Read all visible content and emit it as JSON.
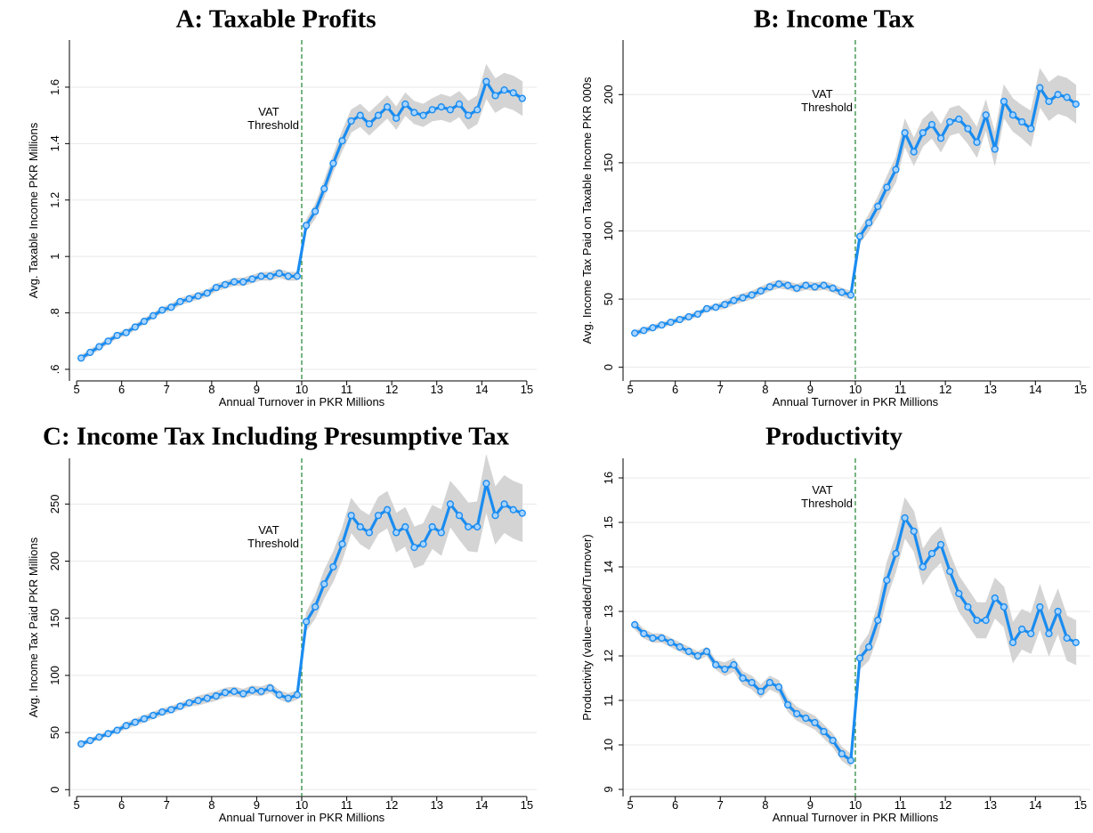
{
  "chart_data": [
    {
      "type": "line",
      "title": "A: Taxable Profits",
      "xlabel": "Annual Turnover in PKR Millions",
      "ylabel": "Avg. Taxable Income PKR Millions",
      "x": [
        5.1,
        5.3,
        5.5,
        5.7,
        5.9,
        6.1,
        6.3,
        6.5,
        6.7,
        6.9,
        7.1,
        7.3,
        7.5,
        7.7,
        7.9,
        8.1,
        8.3,
        8.5,
        8.7,
        8.9,
        9.1,
        9.3,
        9.5,
        9.7,
        9.9,
        10.1,
        10.3,
        10.5,
        10.7,
        10.9,
        11.1,
        11.3,
        11.5,
        11.7,
        11.9,
        12.1,
        12.3,
        12.5,
        12.7,
        12.9,
        13.1,
        13.3,
        13.5,
        13.7,
        13.9,
        14.1,
        14.3,
        14.5,
        14.7,
        14.9
      ],
      "values": [
        0.64,
        0.66,
        0.68,
        0.7,
        0.72,
        0.73,
        0.75,
        0.77,
        0.79,
        0.81,
        0.82,
        0.84,
        0.85,
        0.86,
        0.87,
        0.89,
        0.9,
        0.91,
        0.91,
        0.92,
        0.93,
        0.93,
        0.94,
        0.93,
        0.93,
        1.11,
        1.16,
        1.24,
        1.33,
        1.41,
        1.48,
        1.5,
        1.47,
        1.5,
        1.53,
        1.49,
        1.54,
        1.51,
        1.5,
        1.52,
        1.53,
        1.52,
        1.54,
        1.5,
        1.52,
        1.62,
        1.57,
        1.59,
        1.58,
        1.56
      ],
      "errors": [
        0.01,
        0.01,
        0.01,
        0.01,
        0.01,
        0.01,
        0.01,
        0.01,
        0.01,
        0.01,
        0.012,
        0.012,
        0.012,
        0.012,
        0.012,
        0.013,
        0.013,
        0.013,
        0.014,
        0.014,
        0.014,
        0.015,
        0.015,
        0.015,
        0.015,
        0.02,
        0.025,
        0.03,
        0.03,
        0.035,
        0.04,
        0.04,
        0.04,
        0.04,
        0.04,
        0.04,
        0.04,
        0.04,
        0.04,
        0.04,
        0.045,
        0.045,
        0.045,
        0.05,
        0.05,
        0.06,
        0.06,
        0.06,
        0.06,
        0.06
      ],
      "color": "#1a8cf0",
      "marker_fill": "#a8d4ff",
      "band_color": "#d4d4d4",
      "threshold": 10,
      "threshold_color": "#2e8b3e",
      "annotation_lines": [
        "VAT",
        "Threshold"
      ],
      "xlim": [
        4.84,
        15.22
      ],
      "xticks": [
        5,
        6,
        7,
        8,
        9,
        10,
        11,
        12,
        13,
        14,
        15
      ],
      "ylim": [
        0.559,
        1.767
      ],
      "yticks": [
        {
          "value": 0.6,
          "label": ".6"
        },
        {
          "value": 0.8,
          "label": ".8"
        },
        1,
        1.2,
        1.4,
        1.6
      ],
      "grid": true
    },
    {
      "type": "line",
      "title": "B: Income Tax",
      "xlabel": "Annual Turnover in PKR Millions",
      "ylabel": "Avg. Income Tax Paid on Taxable Income PKR 000s",
      "x": [
        5.1,
        5.3,
        5.5,
        5.7,
        5.9,
        6.1,
        6.3,
        6.5,
        6.7,
        6.9,
        7.1,
        7.3,
        7.5,
        7.7,
        7.9,
        8.1,
        8.3,
        8.5,
        8.7,
        8.9,
        9.1,
        9.3,
        9.5,
        9.7,
        9.9,
        10.1,
        10.3,
        10.5,
        10.7,
        10.9,
        11.1,
        11.3,
        11.5,
        11.7,
        11.9,
        12.1,
        12.3,
        12.5,
        12.7,
        12.9,
        13.1,
        13.3,
        13.5,
        13.7,
        13.9,
        14.1,
        14.3,
        14.5,
        14.7,
        14.9
      ],
      "values": [
        25,
        27,
        29,
        31,
        33,
        35,
        37,
        39,
        43,
        44,
        46,
        49,
        51,
        53,
        56,
        59,
        61,
        60,
        58,
        60,
        59,
        60,
        58,
        55,
        53,
        96,
        106,
        118,
        132,
        145,
        172,
        158,
        172,
        178,
        168,
        180,
        182,
        175,
        165,
        185,
        160,
        195,
        185,
        180,
        175,
        205,
        195,
        200,
        198,
        193
      ],
      "errors": [
        2,
        2,
        2,
        2,
        2,
        2,
        2,
        2,
        2,
        2,
        3,
        3,
        3,
        3,
        3,
        3,
        3,
        3,
        3,
        3,
        3,
        3,
        3,
        3,
        3,
        5,
        6,
        7,
        8,
        9,
        10,
        10,
        10,
        10,
        10,
        10,
        10,
        11,
        11,
        11,
        12,
        12,
        12,
        12,
        13,
        14,
        14,
        14,
        14,
        14
      ],
      "color": "#1a8cf0",
      "marker_fill": "#a8d4ff",
      "band_color": "#d4d4d4",
      "threshold": 10,
      "threshold_color": "#2e8b3e",
      "annotation_lines": [
        "VAT",
        "Threshold"
      ],
      "xlim": [
        4.84,
        15.22
      ],
      "xticks": [
        5,
        6,
        7,
        8,
        9,
        10,
        11,
        12,
        13,
        14,
        15
      ],
      "ylim": [
        -10,
        240
      ],
      "yticks": [
        0,
        50,
        100,
        150,
        200
      ],
      "grid": true
    },
    {
      "type": "line",
      "title": "C: Income Tax Including Presumptive Tax",
      "xlabel": "Annual Turnover in PKR Millions",
      "ylabel": "Avg. Income Tax Paid PKR Millions",
      "x": [
        5.1,
        5.3,
        5.5,
        5.7,
        5.9,
        6.1,
        6.3,
        6.5,
        6.7,
        6.9,
        7.1,
        7.3,
        7.5,
        7.7,
        7.9,
        8.1,
        8.3,
        8.5,
        8.7,
        8.9,
        9.1,
        9.3,
        9.5,
        9.7,
        9.9,
        10.1,
        10.3,
        10.5,
        10.7,
        10.9,
        11.1,
        11.3,
        11.5,
        11.7,
        11.9,
        12.1,
        12.3,
        12.5,
        12.7,
        12.9,
        13.1,
        13.3,
        13.5,
        13.7,
        13.9,
        14.1,
        14.3,
        14.5,
        14.7,
        14.9
      ],
      "values": [
        40,
        43,
        46,
        49,
        52,
        56,
        59,
        62,
        65,
        68,
        70,
        73,
        76,
        78,
        80,
        82,
        85,
        86,
        84,
        87,
        86,
        89,
        83,
        80,
        83,
        147,
        160,
        180,
        195,
        215,
        240,
        230,
        225,
        240,
        245,
        225,
        230,
        212,
        215,
        230,
        225,
        250,
        240,
        230,
        230,
        268,
        240,
        250,
        245,
        242
      ],
      "errors": [
        2,
        2,
        2,
        2,
        2,
        3,
        3,
        3,
        3,
        3,
        3,
        3,
        3,
        4,
        4,
        4,
        4,
        4,
        4,
        4,
        4,
        4,
        4,
        4,
        4,
        8,
        10,
        12,
        13,
        14,
        15,
        15,
        15,
        16,
        16,
        17,
        17,
        18,
        18,
        19,
        20,
        20,
        21,
        21,
        22,
        25,
        25,
        25,
        25,
        25
      ],
      "color": "#1a8cf0",
      "marker_fill": "#a8d4ff",
      "band_color": "#d4d4d4",
      "threshold": 10,
      "threshold_color": "#2e8b3e",
      "annotation_lines": [
        "VAT",
        "Threshold"
      ],
      "xlim": [
        4.84,
        15.22
      ],
      "xticks": [
        5,
        6,
        7,
        8,
        9,
        10,
        11,
        12,
        13,
        14,
        15
      ],
      "ylim": [
        -6,
        290
      ],
      "yticks": [
        0,
        50,
        100,
        150,
        200,
        250
      ],
      "grid": true
    },
    {
      "type": "line",
      "title": "Productivity",
      "xlabel": "Annual Turnover in PKR Millions",
      "ylabel": "Productivity (value−added/Turnover)",
      "x": [
        5.1,
        5.3,
        5.5,
        5.7,
        5.9,
        6.1,
        6.3,
        6.5,
        6.7,
        6.9,
        7.1,
        7.3,
        7.5,
        7.7,
        7.9,
        8.1,
        8.3,
        8.5,
        8.7,
        8.9,
        9.1,
        9.3,
        9.5,
        9.7,
        9.9,
        10.1,
        10.3,
        10.5,
        10.7,
        10.9,
        11.1,
        11.3,
        11.5,
        11.7,
        11.9,
        12.1,
        12.3,
        12.5,
        12.7,
        12.9,
        13.1,
        13.3,
        13.5,
        13.7,
        13.9,
        14.1,
        14.3,
        14.5,
        14.7,
        14.9
      ],
      "values": [
        12.7,
        12.5,
        12.4,
        12.4,
        12.3,
        12.2,
        12.1,
        12.0,
        12.1,
        11.8,
        11.7,
        11.8,
        11.5,
        11.4,
        11.2,
        11.4,
        11.3,
        10.9,
        10.7,
        10.6,
        10.5,
        10.3,
        10.1,
        9.8,
        9.65,
        11.95,
        12.2,
        12.8,
        13.7,
        14.3,
        15.1,
        14.8,
        14.0,
        14.3,
        14.5,
        13.9,
        13.4,
        13.1,
        12.8,
        12.8,
        13.3,
        13.1,
        12.3,
        12.6,
        12.5,
        13.1,
        12.5,
        13.0,
        12.4,
        12.3
      ],
      "errors": [
        0.1,
        0.1,
        0.1,
        0.1,
        0.1,
        0.1,
        0.1,
        0.1,
        0.1,
        0.1,
        0.15,
        0.15,
        0.15,
        0.15,
        0.15,
        0.15,
        0.15,
        0.15,
        0.15,
        0.15,
        0.15,
        0.15,
        0.15,
        0.15,
        0.15,
        0.25,
        0.3,
        0.35,
        0.4,
        0.4,
        0.45,
        0.45,
        0.4,
        0.4,
        0.4,
        0.4,
        0.4,
        0.4,
        0.4,
        0.4,
        0.45,
        0.45,
        0.45,
        0.45,
        0.45,
        0.5,
        0.5,
        0.5,
        0.5,
        0.5
      ],
      "color": "#1a8cf0",
      "marker_fill": "#a8d4ff",
      "band_color": "#d4d4d4",
      "threshold": 10,
      "threshold_color": "#2e8b3e",
      "annotation_lines": [
        "VAT",
        "Threshold"
      ],
      "xlim": [
        4.84,
        15.22
      ],
      "xticks": [
        5,
        6,
        7,
        8,
        9,
        10,
        11,
        12,
        13,
        14,
        15
      ],
      "ylim": [
        8.84,
        16.44
      ],
      "yticks": [
        9,
        10,
        11,
        12,
        13,
        14,
        15,
        16
      ],
      "grid": true
    }
  ]
}
